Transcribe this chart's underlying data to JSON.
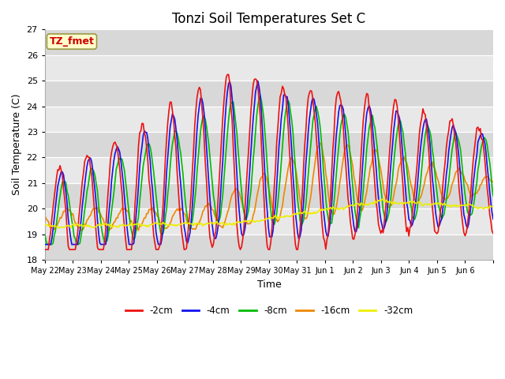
{
  "title": "Tonzi Soil Temperatures Set C",
  "xlabel": "Time",
  "ylabel": "Soil Temperature (C)",
  "ylim": [
    18.0,
    27.0
  ],
  "yticks": [
    18.0,
    19.0,
    20.0,
    21.0,
    22.0,
    23.0,
    24.0,
    25.0,
    26.0,
    27.0
  ],
  "xtick_labels": [
    "May 22",
    "May 23",
    "May 24",
    "May 25",
    "May 26",
    "May 27",
    "May 28",
    "May 29",
    "May 30",
    "May 31",
    "Jun 1",
    "Jun 2",
    "Jun 3",
    "Jun 4",
    "Jun 5",
    "Jun 6"
  ],
  "annotation_text": "TZ_fmet",
  "annotation_color": "#cc0000",
  "annotation_bg": "#ffffcc",
  "line_colors": {
    "-2cm": "#ee1111",
    "-4cm": "#1111ee",
    "-8cm": "#00bb00",
    "-16cm": "#ee8800",
    "-32cm": "#eeee00"
  },
  "legend_labels": [
    "-2cm",
    "-4cm",
    "-8cm",
    "-16cm",
    "-32cm"
  ],
  "fig_facecolor": "#ffffff",
  "plot_bg_dark": "#d8d8d8",
  "plot_bg_light": "#e8e8e8",
  "grid_color": "#ffffff",
  "title_fontsize": 12
}
